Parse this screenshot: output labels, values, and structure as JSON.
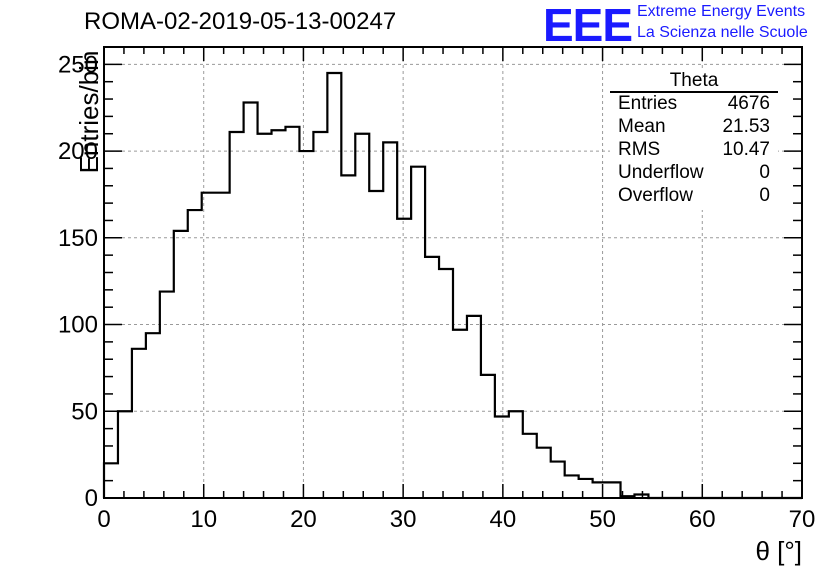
{
  "title": "ROMA-02-2019-05-13-00247",
  "logo": {
    "mark": "EEE",
    "line1": "Extreme Energy Events",
    "line2": "La Scienza nelle Scuole",
    "color": "#1a1aff"
  },
  "stats_box": {
    "title": "Theta",
    "rows": [
      {
        "label": "Entries",
        "value": "4676"
      },
      {
        "label": "Mean",
        "value": "21.53"
      },
      {
        "label": "RMS",
        "value": "10.47"
      },
      {
        "label": "Underflow",
        "value": "0"
      },
      {
        "label": "Overflow",
        "value": "0"
      }
    ]
  },
  "chart_data": {
    "type": "histogram",
    "title": "ROMA-02-2019-05-13-00247",
    "xlabel": "θ [°]",
    "ylabel": "Entries/bin",
    "xlim": [
      0,
      70
    ],
    "ylim": [
      0,
      260
    ],
    "xticks": [
      0,
      10,
      20,
      30,
      40,
      50,
      60,
      70
    ],
    "yticks": [
      0,
      50,
      100,
      150,
      200,
      250
    ],
    "grid": true,
    "bin_width": 1.4,
    "bin_contents": [
      20,
      50,
      86,
      95,
      119,
      154,
      166,
      176,
      176,
      211,
      228,
      210,
      212,
      214,
      200,
      211,
      245,
      186,
      210,
      177,
      205,
      161,
      191,
      139,
      132,
      97,
      105,
      71,
      47,
      50,
      37,
      29,
      21,
      13,
      11,
      9,
      9,
      1,
      2,
      0,
      0,
      0,
      0,
      0,
      0,
      0,
      0,
      0,
      0,
      0
    ],
    "line_color": "#000000"
  }
}
